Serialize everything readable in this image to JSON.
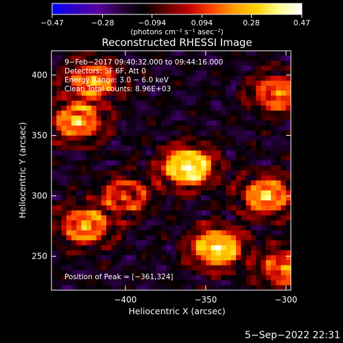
{
  "chart_data": {
    "type": "heatmap",
    "title": "Reconstructed RHESSI Image",
    "xlabel": "Heliocentric X (arcsec)",
    "ylabel": "Heliocentric Y (arcsec)",
    "xlim": [
      -446,
      -297
    ],
    "ylim": [
      222,
      420
    ],
    "x_ticks": [
      {
        "value": -400,
        "label": "−400"
      },
      {
        "value": -350,
        "label": "−350"
      },
      {
        "value": -300,
        "label": "−300"
      }
    ],
    "y_ticks": [
      {
        "value": 250,
        "label": "250"
      },
      {
        "value": 300,
        "label": "300"
      },
      {
        "value": 350,
        "label": "350"
      },
      {
        "value": 400,
        "label": "400"
      }
    ],
    "colorbar": {
      "min": -0.47,
      "max": 0.47,
      "units": "(photons cm⁻² s⁻¹ asec⁻²)",
      "ticks": [
        {
          "value": -0.47,
          "label": "−0.47"
        },
        {
          "value": -0.28,
          "label": "−0.28"
        },
        {
          "value": -0.094,
          "label": "−0.094"
        },
        {
          "value": 0.094,
          "label": "0.094"
        },
        {
          "value": 0.28,
          "label": "0.28"
        },
        {
          "value": 0.47,
          "label": "0.47"
        }
      ],
      "colormap": [
        "#0000ff",
        "#3000c0",
        "#5a00a0",
        "#2a0040",
        "#000000",
        "#600000",
        "#c00000",
        "#ff4000",
        "#ff9c00",
        "#ffd200",
        "#ffff90",
        "#ffffff"
      ]
    },
    "sources": [
      {
        "x": -361,
        "y": 324,
        "peak": 0.47
      },
      {
        "x": -343,
        "y": 257,
        "peak": 0.4
      },
      {
        "x": -312,
        "y": 300,
        "peak": 0.3
      },
      {
        "x": -430,
        "y": 362,
        "peak": 0.28
      },
      {
        "x": -420,
        "y": 395,
        "peak": 0.24
      },
      {
        "x": -425,
        "y": 275,
        "peak": 0.26
      },
      {
        "x": -305,
        "y": 385,
        "peak": 0.22
      },
      {
        "x": -400,
        "y": 300,
        "peak": 0.14
      },
      {
        "x": -300,
        "y": 240,
        "peak": 0.22
      }
    ],
    "annotations": [
      "9−Feb−2017 09:40:32.000 to 09:44:16.000",
      "Detectors: 3F 6F, Att 0",
      "Energy Range: 3.0 − 6.0 keV",
      "Clean    Total counts: 8.96E+03"
    ],
    "peak_label": "Position of Peak = [−361,324]"
  },
  "footer": {
    "date": "5−Sep−2022 22:31"
  }
}
